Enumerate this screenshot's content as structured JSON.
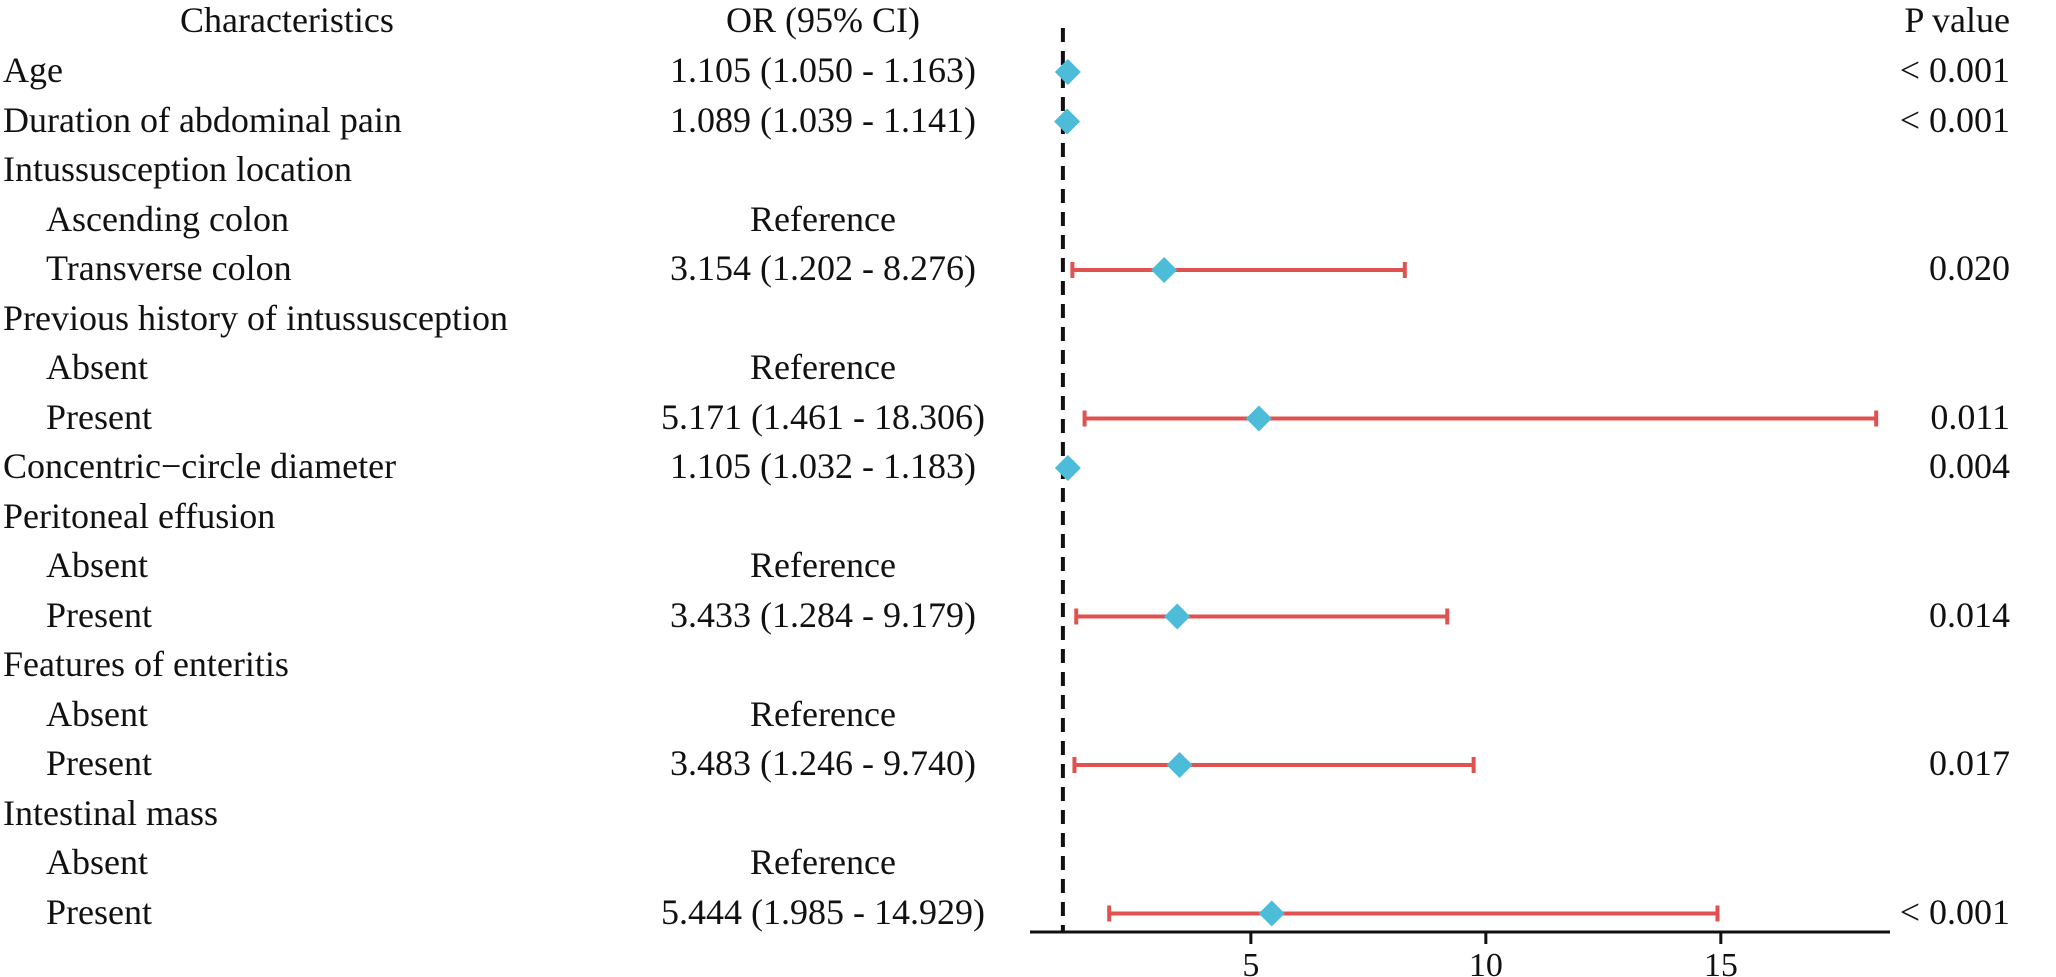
{
  "headers": {
    "characteristics": "Characteristics",
    "or": "OR (95% CI)",
    "p": "P value"
  },
  "rows": [
    {
      "label": "Age",
      "indent": false,
      "or_text": "1.105 (1.050 - 1.163)",
      "p_text": "< 0.001"
    },
    {
      "label": "Duration of abdominal pain",
      "indent": false,
      "or_text": "1.089 (1.039 - 1.141)",
      "p_text": "< 0.001"
    },
    {
      "label": "Intussusception location",
      "indent": false,
      "or_text": "",
      "p_text": ""
    },
    {
      "label": "Ascending colon",
      "indent": true,
      "or_text": "Reference",
      "p_text": ""
    },
    {
      "label": "Transverse colon",
      "indent": true,
      "or_text": "3.154 (1.202 - 8.276)",
      "p_text": "0.020"
    },
    {
      "label": "Previous history of intussusception",
      "indent": false,
      "or_text": "",
      "p_text": ""
    },
    {
      "label": "Absent",
      "indent": true,
      "or_text": "Reference",
      "p_text": ""
    },
    {
      "label": "Present",
      "indent": true,
      "or_text": "5.171 (1.461 - 18.306)",
      "p_text": "0.011"
    },
    {
      "label": "Concentric−circle diameter",
      "indent": false,
      "or_text": "1.105 (1.032 - 1.183)",
      "p_text": "0.004"
    },
    {
      "label": "Peritoneal effusion",
      "indent": false,
      "or_text": "",
      "p_text": ""
    },
    {
      "label": "Absent",
      "indent": true,
      "or_text": "Reference",
      "p_text": ""
    },
    {
      "label": "Present",
      "indent": true,
      "or_text": "3.433 (1.284 - 9.179)",
      "p_text": "0.014"
    },
    {
      "label": "Features of enteritis",
      "indent": false,
      "or_text": "",
      "p_text": ""
    },
    {
      "label": "Absent",
      "indent": true,
      "or_text": "Reference",
      "p_text": ""
    },
    {
      "label": "Present",
      "indent": true,
      "or_text": "3.483 (1.246 - 9.740)",
      "p_text": "0.017"
    },
    {
      "label": "Intestinal mass",
      "indent": false,
      "or_text": "",
      "p_text": ""
    },
    {
      "label": "Absent",
      "indent": true,
      "or_text": "Reference",
      "p_text": ""
    },
    {
      "label": "Present",
      "indent": true,
      "or_text": "5.444 (1.985 - 14.929)",
      "p_text": "< 0.001"
    }
  ],
  "chart_data": {
    "type": "forest",
    "reference_line": 1,
    "xticks": [
      5,
      10,
      15
    ],
    "xlim": [
      0.3,
      18.6
    ],
    "points": [
      {
        "row": 0,
        "or": 1.105,
        "lo": 1.05,
        "hi": 1.163
      },
      {
        "row": 1,
        "or": 1.089,
        "lo": 1.039,
        "hi": 1.141
      },
      {
        "row": 4,
        "or": 3.154,
        "lo": 1.202,
        "hi": 8.276
      },
      {
        "row": 7,
        "or": 5.171,
        "lo": 1.461,
        "hi": 18.306
      },
      {
        "row": 8,
        "or": 1.105,
        "lo": 1.032,
        "hi": 1.183
      },
      {
        "row": 11,
        "or": 3.433,
        "lo": 1.284,
        "hi": 9.179
      },
      {
        "row": 14,
        "or": 3.483,
        "lo": 1.246,
        "hi": 9.74
      },
      {
        "row": 17,
        "or": 5.444,
        "lo": 1.985,
        "hi": 14.929
      }
    ],
    "colors": {
      "ci": "#e05252",
      "marker": "#4cbcd8",
      "ref_line": "#111111",
      "axis": "#111111"
    }
  }
}
